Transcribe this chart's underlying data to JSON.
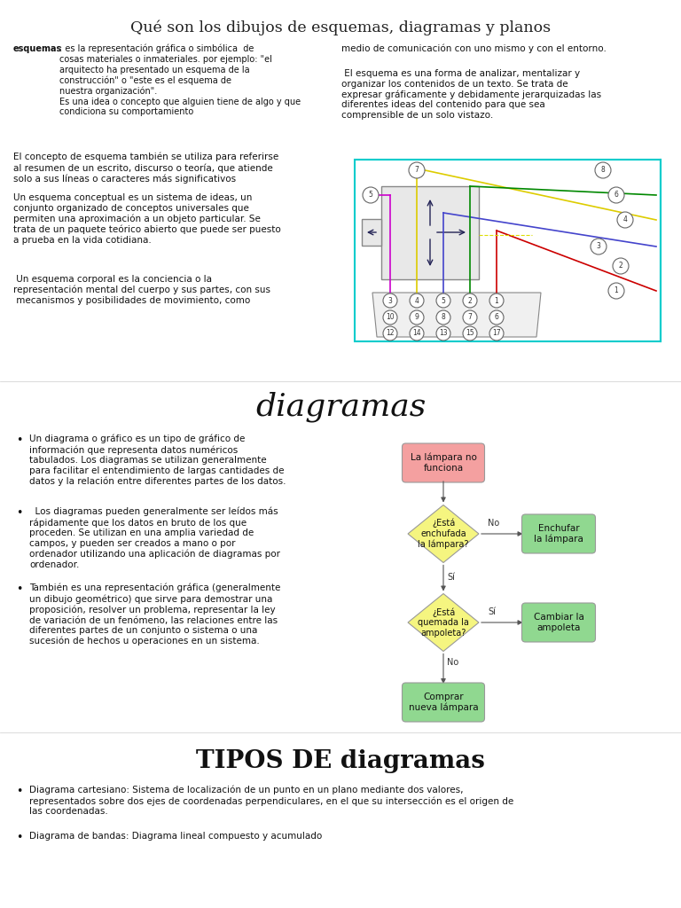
{
  "title1": "Qué son los dibujos de esquemas, diagramas y planos",
  "bg_color": "#ffffff",
  "section1_left_text": "esquemas : es la representación gráfica o simbólica  de\ncosas materiales o inmateriales. por ejemplo: \"el\narquitecto ha presentado un esquema de la\nconstrucción\" o \"este es el esquema de\nnuestra organización\".\nEs una idea o concepto que alguien tiene de algo y que\ncondiciona su comportamiento",
  "section1_right_text1": "medio de comunicación con uno mismo y con el entorno.",
  "section1_right_text2": " El esquema es una forma de analizar, mentalizar y\norganizar los contenidos de un texto. Se trata de\nexpresar gráficamente y debidamente jerarquizadas las\ndiferentes ideas del contenido para que sea\ncomprensible de un solo vistazo.",
  "section2_left_text1": "El concepto de esquema también se utiliza para referirse\nal resumen de un escrito, discurso o teoría, que atiende\nsolo a sus líneas o caracteres más significativos",
  "section2_left_text2": "Un esquema conceptual es un sistema de ideas, un\nconjunto organizado de conceptos universales que\npermiten una aproximación a un objeto particular. Se\ntrata de un paquete teórico abierto que puede ser puesto\na prueba en la vida cotidiana.",
  "section2_left_text3": " Un esquema corporal es la conciencia o la\nrepresentación mental del cuerpo y sus partes, con sus\n mecanismos y posibilidades de movimiento, como",
  "title2": "diagramas",
  "bullet1": "Un diagrama o gráfico es un tipo de gráfico de\ninformación que representa datos numéricos\ntabulados. Los diagramas se utilizan generalmente\npara facilitar el entendimiento de largas cantidades de\ndatos y la relación entre diferentes partes de los datos.",
  "bullet2": "  Los diagramas pueden generalmente ser leídos más\nrápidamente que los datos en bruto de los que\nproceden. Se utilizan en una amplia variedad de\ncampos, y pueden ser creados a mano o por\nordenador utilizando una aplicación de diagramas por\nordenador.",
  "bullet3": "También es una representación gráfica (generalmente\nun dibujo geométrico) que sirve para demostrar una\nproposición, resolver un problema, representar la ley\nde variación de un fenómeno, las relaciones entre las\ndiferentes partes de un conjunto o sistema o una\nsucesión de hechos u operaciones en un sistema.",
  "title3": "TIPOS DE diagramas",
  "bullet4": "Diagrama cartesiano: Sistema de localización de un punto en un plano mediante dos valores,\nrepresentados sobre dos ejes de coordenadas perpendiculares, en el que su intersección es el origen de\nlas coordenadas.",
  "bullet5": "Diagrama de bandas: Diagrama lineal compuesto y acumulado"
}
